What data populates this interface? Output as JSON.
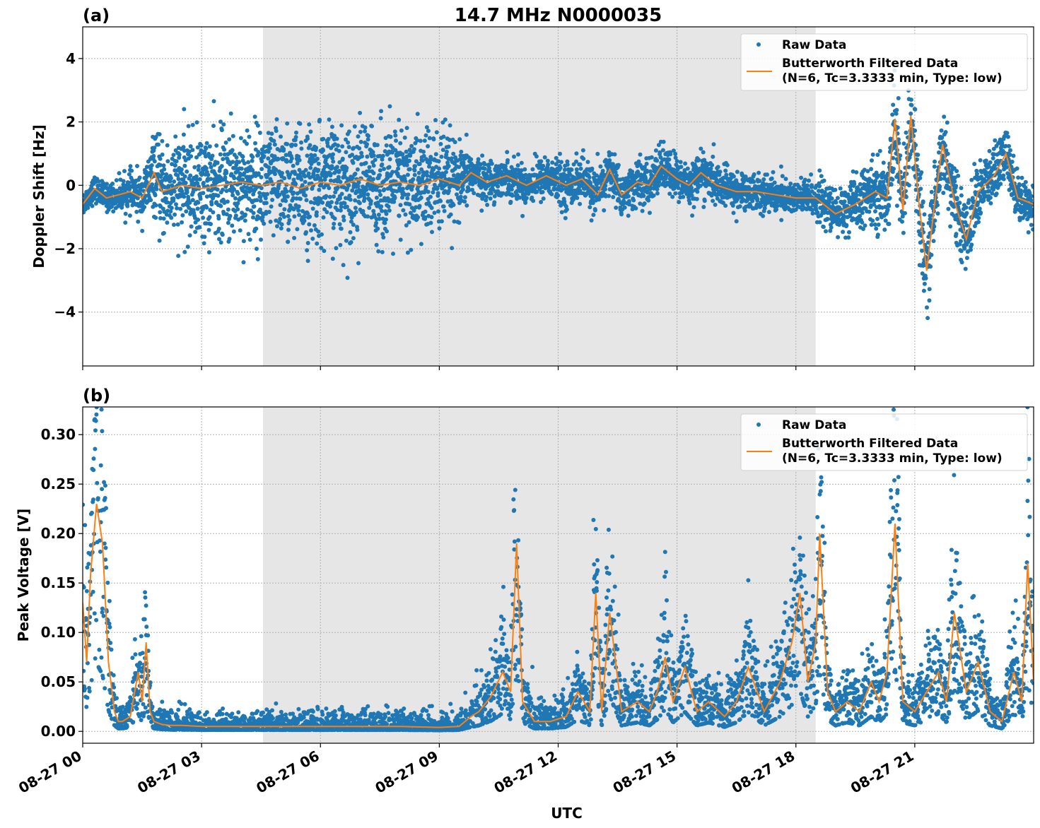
{
  "chart_data": {
    "type": "scatter",
    "title": "14.7 MHz N0000035",
    "xlabel": "UTC",
    "x_unit": "hours since 08-27 00:00 UTC",
    "xlim": [
      0,
      24
    ],
    "x_tick_values": [
      0,
      3,
      6,
      9,
      12,
      15,
      18,
      21
    ],
    "x_tick_labels": [
      "08-27 00",
      "08-27 03",
      "08-27 06",
      "08-27 09",
      "08-27 12",
      "08-27 15",
      "08-27 18",
      "08-27 21"
    ],
    "shaded_region_hours": [
      4.55,
      18.5
    ],
    "grid": true,
    "legend_placement": "top-right",
    "colors": {
      "raw": "#1f77b4",
      "filtered": "#ff7f0e",
      "shade": "#e6e6e6",
      "grid": "#b0b0b0"
    },
    "legend": {
      "raw": "Raw Data",
      "filtered_line1": "Butterworth Filtered Data",
      "filtered_line2": "(N=6, Tc=3.3333 min, Type: low)"
    },
    "panels": [
      {
        "label": "(a)",
        "ylabel": "Doppler Shift [Hz]",
        "ylim": [
          -5.7,
          5.0
        ],
        "y_ticks": [
          -4,
          -2,
          0,
          2,
          4
        ],
        "y_tick_labels": [
          "−4",
          "−2",
          "0",
          "2",
          "4"
        ],
        "filtered_series": {
          "name": "Butterworth Filtered Data",
          "x": [
            0,
            0.3,
            0.6,
            0.9,
            1.2,
            1.5,
            1.8,
            2.0,
            2.5,
            3.0,
            3.5,
            4.0,
            4.5,
            5.0,
            5.5,
            6.0,
            6.5,
            7.0,
            7.5,
            8.0,
            8.5,
            9.0,
            9.5,
            9.8,
            10.2,
            10.7,
            11.2,
            11.7,
            12.2,
            12.6,
            13.0,
            13.3,
            13.6,
            14.0,
            14.3,
            14.6,
            15.0,
            15.3,
            15.6,
            16.0,
            16.5,
            17.0,
            17.5,
            18.0,
            18.5,
            19.0,
            19.5,
            20.0,
            20.3,
            20.5,
            20.7,
            20.9,
            21.1,
            21.3,
            21.5,
            21.7,
            22.0,
            22.3,
            22.6,
            23.0,
            23.3,
            23.6,
            24.0
          ],
          "y": [
            -0.6,
            -0.1,
            -0.4,
            -0.3,
            -0.2,
            -0.4,
            0.4,
            -0.2,
            0.0,
            -0.1,
            0.0,
            0.1,
            0.0,
            0.1,
            -0.1,
            0.1,
            0.0,
            0.2,
            0.0,
            0.1,
            0.0,
            0.2,
            0.0,
            0.4,
            0.1,
            0.3,
            0.0,
            0.3,
            0.0,
            0.2,
            -0.3,
            0.5,
            -0.3,
            0.1,
            0.0,
            0.6,
            0.2,
            0.0,
            0.4,
            0.0,
            -0.2,
            -0.2,
            -0.3,
            -0.4,
            -0.4,
            -0.9,
            -0.6,
            -0.2,
            -0.4,
            2.1,
            -0.8,
            2.2,
            -0.5,
            -2.7,
            -0.6,
            1.3,
            -0.5,
            -1.7,
            -0.2,
            0.3,
            1.0,
            -0.4,
            -0.6
          ]
        },
        "raw_spread": {
          "x": [
            0,
            0.8,
            1.5,
            2.0,
            3.0,
            4.5,
            6.0,
            7.5,
            9.0,
            9.7,
            10.0,
            11.0,
            12.5,
            13.5,
            15.0,
            16.5,
            18.0,
            19.0,
            20.0,
            20.5,
            21.0,
            21.3,
            21.6,
            22.0,
            22.5,
            23.0,
            24.0
          ],
          "half_width": [
            0.3,
            0.35,
            0.6,
            1.2,
            1.4,
            1.5,
            1.5,
            1.5,
            1.5,
            0.7,
            0.5,
            0.5,
            0.6,
            0.6,
            0.6,
            0.5,
            0.45,
            0.6,
            0.8,
            1.2,
            1.0,
            1.4,
            1.0,
            0.9,
            0.8,
            0.8,
            0.5
          ]
        }
      },
      {
        "label": "(b)",
        "ylabel": "Peak Voltage [V]",
        "ylim": [
          -0.012,
          0.328
        ],
        "y_ticks": [
          0.0,
          0.05,
          0.1,
          0.15,
          0.2,
          0.25,
          0.3
        ],
        "y_tick_labels": [
          "0.00",
          "0.05",
          "0.10",
          "0.15",
          "0.20",
          "0.25",
          "0.30"
        ],
        "filtered_series": {
          "name": "Butterworth Filtered Data",
          "x": [
            0,
            0.1,
            0.2,
            0.35,
            0.5,
            0.65,
            0.8,
            0.9,
            1.0,
            1.2,
            1.4,
            1.5,
            1.6,
            1.7,
            1.8,
            2.0,
            2.2,
            2.5,
            3.0,
            4.0,
            5.0,
            6.0,
            7.0,
            8.0,
            9.0,
            9.5,
            9.8,
            10.0,
            10.3,
            10.6,
            10.8,
            10.95,
            11.1,
            11.4,
            11.8,
            12.2,
            12.5,
            12.8,
            12.95,
            13.1,
            13.3,
            13.6,
            14.0,
            14.3,
            14.5,
            14.7,
            14.9,
            15.2,
            15.5,
            15.8,
            16.2,
            16.5,
            16.8,
            17.2,
            17.6,
            17.9,
            18.1,
            18.3,
            18.5,
            18.6,
            18.8,
            19.0,
            19.3,
            19.6,
            19.9,
            20.1,
            20.3,
            20.5,
            20.7,
            21.0,
            21.3,
            21.6,
            21.8,
            22.0,
            22.3,
            22.6,
            22.9,
            23.2,
            23.5,
            23.7,
            23.85,
            24.0
          ],
          "y": [
            0.13,
            0.07,
            0.16,
            0.23,
            0.19,
            0.07,
            0.02,
            0.01,
            0.01,
            0.015,
            0.06,
            0.03,
            0.09,
            0.02,
            0.01,
            0.007,
            0.006,
            0.006,
            0.005,
            0.005,
            0.005,
            0.005,
            0.005,
            0.005,
            0.004,
            0.005,
            0.015,
            0.02,
            0.035,
            0.06,
            0.04,
            0.19,
            0.03,
            0.01,
            0.01,
            0.015,
            0.04,
            0.02,
            0.14,
            0.02,
            0.12,
            0.02,
            0.03,
            0.02,
            0.04,
            0.075,
            0.03,
            0.065,
            0.02,
            0.03,
            0.015,
            0.03,
            0.065,
            0.02,
            0.05,
            0.09,
            0.14,
            0.05,
            0.09,
            0.2,
            0.04,
            0.02,
            0.03,
            0.02,
            0.05,
            0.03,
            0.06,
            0.21,
            0.03,
            0.02,
            0.04,
            0.06,
            0.03,
            0.12,
            0.04,
            0.07,
            0.02,
            0.01,
            0.06,
            0.03,
            0.17,
            0.05
          ]
        }
      }
    ]
  }
}
